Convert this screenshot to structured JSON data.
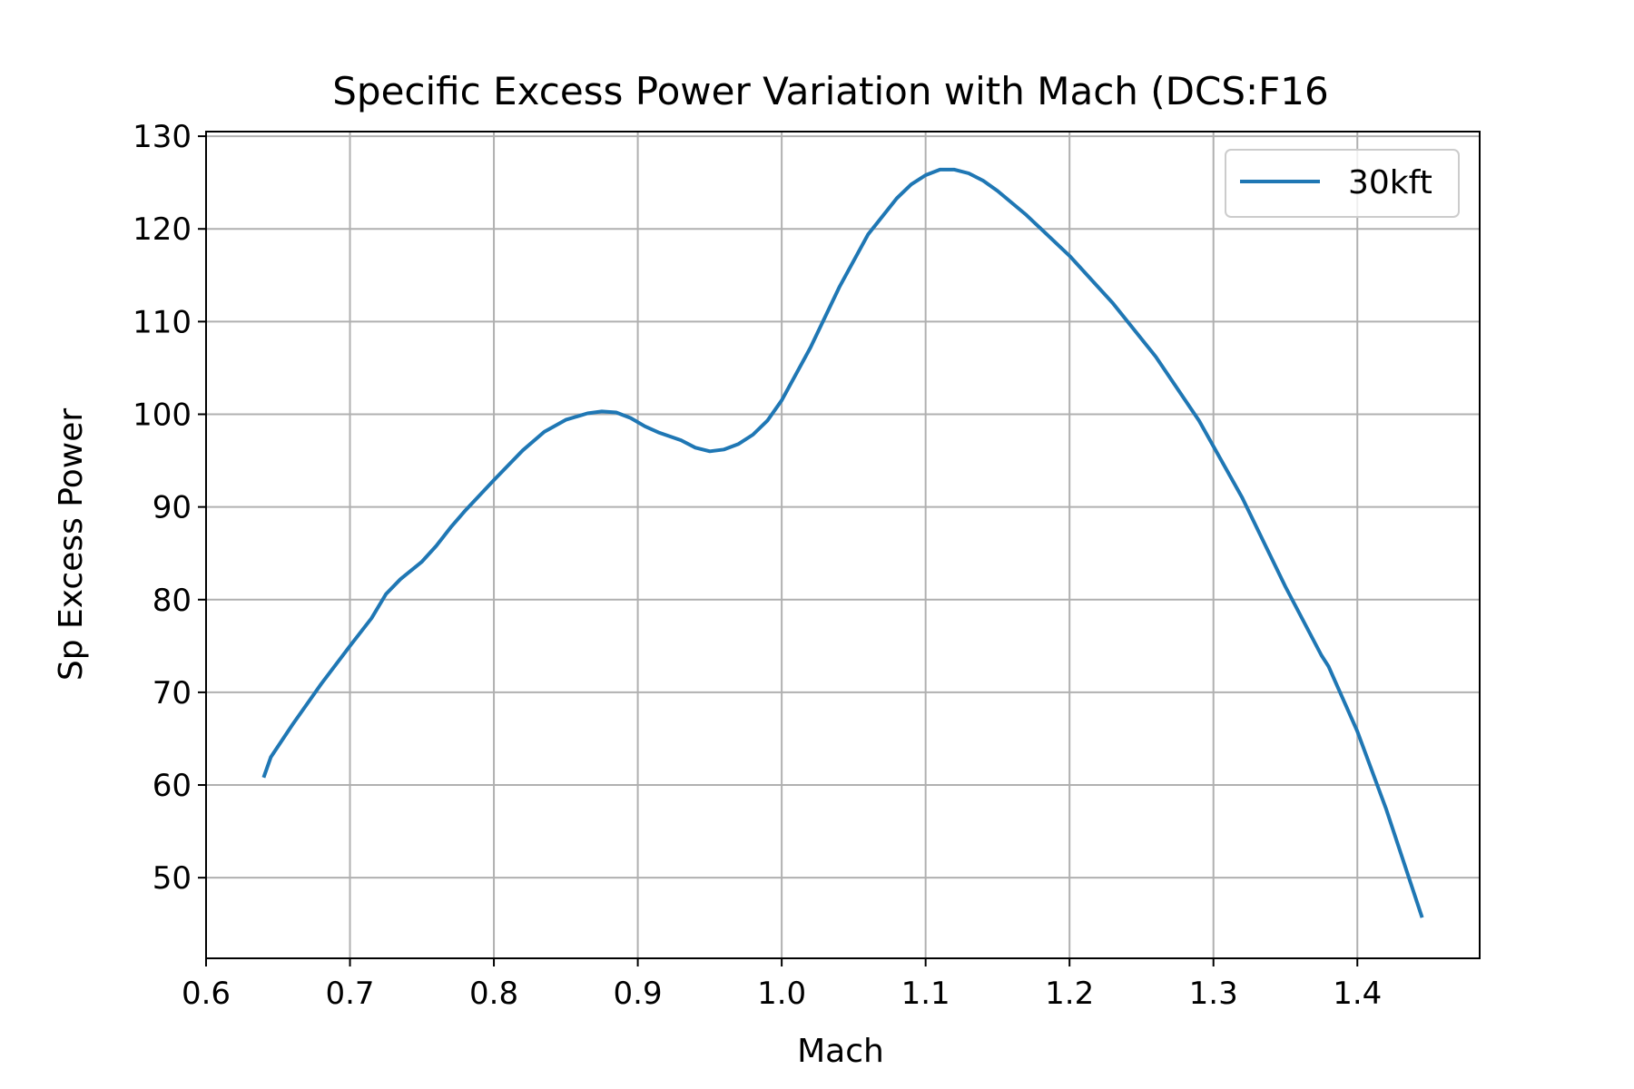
{
  "chart_data": {
    "type": "line",
    "title": "Specific Excess Power Variation with Mach (DCS:F16",
    "xlabel": "Mach",
    "ylabel": "Sp Excess Power",
    "xlim": [
      0.6,
      1.485
    ],
    "ylim": [
      41.3,
      130.5
    ],
    "xticks": [
      "0.6",
      "0.7",
      "0.8",
      "0.9",
      "1.0",
      "1.1",
      "1.2",
      "1.3",
      "1.4"
    ],
    "yticks": [
      "50",
      "60",
      "70",
      "80",
      "90",
      "100",
      "110",
      "120",
      "130"
    ],
    "grid": true,
    "legend_position": "top-right",
    "series": [
      {
        "name": "30kft",
        "color": "#1f77b4",
        "x": [
          0.64,
          0.645,
          0.66,
          0.68,
          0.7,
          0.715,
          0.725,
          0.735,
          0.75,
          0.76,
          0.77,
          0.78,
          0.8,
          0.82,
          0.835,
          0.85,
          0.865,
          0.875,
          0.885,
          0.895,
          0.905,
          0.915,
          0.93,
          0.94,
          0.95,
          0.96,
          0.97,
          0.98,
          0.99,
          1.0,
          1.02,
          1.04,
          1.06,
          1.08,
          1.09,
          1.1,
          1.11,
          1.12,
          1.13,
          1.14,
          1.15,
          1.17,
          1.2,
          1.23,
          1.26,
          1.29,
          1.32,
          1.35,
          1.375,
          1.38,
          1.4,
          1.42,
          1.445
        ],
        "y": [
          60.8,
          63.0,
          66.5,
          70.9,
          75.0,
          78.0,
          80.6,
          82.2,
          84.1,
          85.8,
          87.8,
          89.6,
          92.9,
          96.1,
          98.1,
          99.4,
          100.1,
          100.3,
          100.2,
          99.6,
          98.7,
          98.0,
          97.2,
          96.4,
          96.0,
          96.2,
          96.8,
          97.8,
          99.3,
          101.5,
          107.2,
          113.7,
          119.4,
          123.3,
          124.8,
          125.8,
          126.4,
          126.4,
          126.0,
          125.2,
          124.1,
          121.5,
          117.1,
          112.0,
          106.2,
          99.3,
          91.0,
          81.4,
          74.0,
          72.8,
          65.8,
          57.4,
          45.7
        ]
      }
    ]
  }
}
